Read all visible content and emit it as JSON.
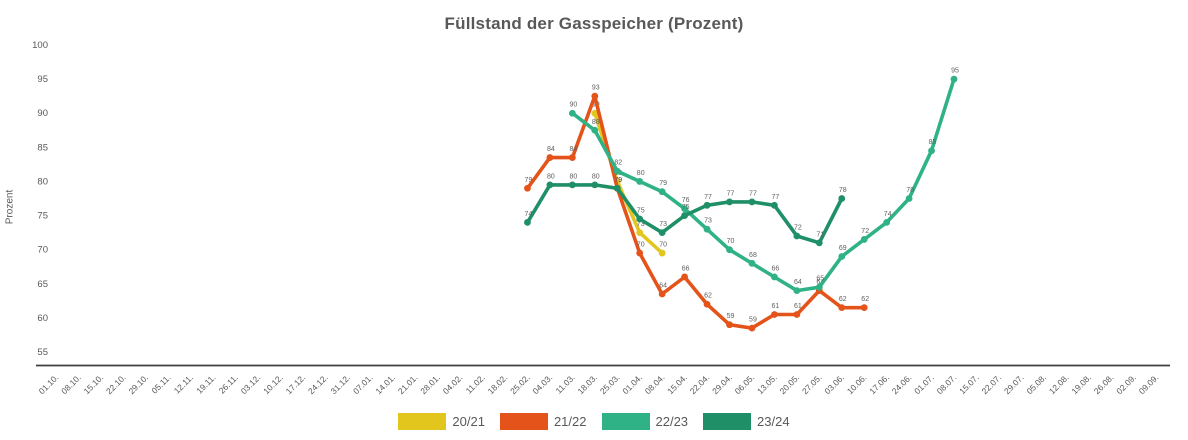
{
  "chart_data": {
    "type": "line",
    "title": "Füllstand der Gasspeicher (Prozent)",
    "ylabel": "Prozent",
    "xlabel": "",
    "grid": false,
    "legend_position": "bottom",
    "point_markers": true,
    "point_value_labels": true,
    "text_color": "#595959",
    "axis_color": "#3f3f3f",
    "ylim": [
      55,
      100
    ],
    "y_ticks": [
      100,
      95,
      90,
      85,
      80,
      75,
      70,
      65,
      60,
      55
    ],
    "x_tick_labels": [
      "01.10.",
      "08.10.",
      "15.10.",
      "22.10.",
      "29.10.",
      "05.11.",
      "12.11.",
      "19.11.",
      "26.11.",
      "03.12.",
      "10.12.",
      "17.12.",
      "24.12.",
      "31.12.",
      "07.01.",
      "14.01.",
      "21.01.",
      "28.01.",
      "04.02.",
      "11.02.",
      "18.02.",
      "25.02.",
      "04.03.",
      "11.03.",
      "18.03.",
      "25.03.",
      "01.04.",
      "08.04.",
      "15.04.",
      "22.04.",
      "29.04.",
      "06.05.",
      "13.05.",
      "20.05.",
      "27.05.",
      "03.06.",
      "10.06.",
      "17.06.",
      "24.06.",
      "01.07.",
      "08.07.",
      "15.07.",
      "22.07.",
      "29.07.",
      "05.08.",
      "12.08.",
      "19.08.",
      "26.08.",
      "02.09.",
      "09.09."
    ],
    "series": [
      {
        "name": "20/21",
        "color": "#e2c51d",
        "start_index": 24,
        "values": [
          90,
          80,
          72.5,
          69.5
        ]
      },
      {
        "name": "21/22",
        "color": "#e4541a",
        "start_index": 21,
        "values": [
          79,
          83.5,
          83.5,
          92.5,
          79,
          69.5,
          63.5,
          66,
          62,
          59,
          58.5,
          60.5,
          60.5,
          64,
          61.5,
          61.5
        ]
      },
      {
        "name": "22/23",
        "color": "#2fb286",
        "start_index": 23,
        "values": [
          90,
          87.5,
          81.5,
          80,
          78.5,
          76,
          73,
          70,
          68,
          66,
          64,
          64.5,
          69,
          71.5,
          74,
          77.5,
          84.5,
          95
        ]
      },
      {
        "name": "23/24",
        "color": "#1e8f66",
        "start_index": 21,
        "values": [
          74,
          79.5,
          79.5,
          79.5,
          79,
          74.5,
          72.5,
          75,
          76.5,
          77,
          77,
          76.5,
          72,
          71,
          77.5
        ]
      }
    ]
  }
}
